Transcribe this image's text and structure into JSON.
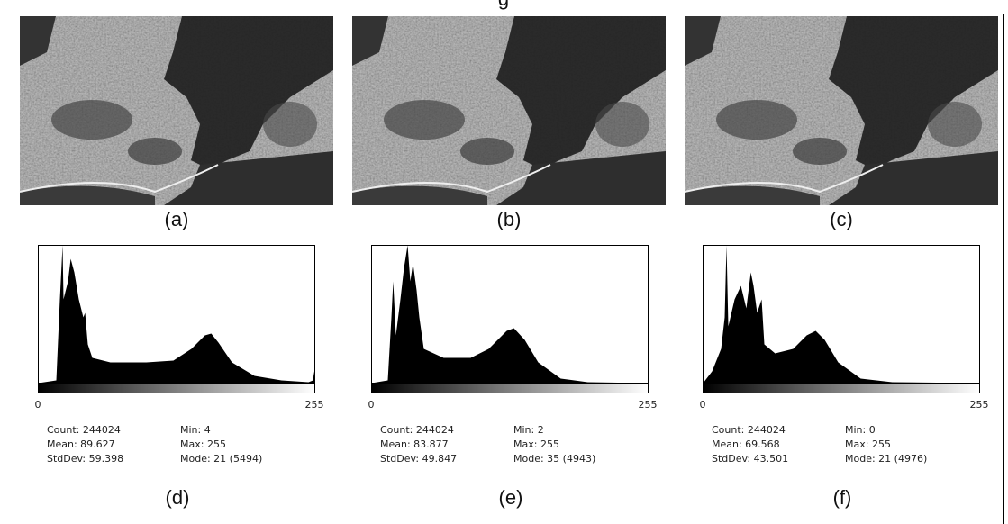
{
  "images": [
    {
      "caption": "(a)"
    },
    {
      "caption": "(b)"
    },
    {
      "caption": "(c)"
    }
  ],
  "histograms": [
    {
      "axis_min": "0",
      "axis_max": "255",
      "stats": [
        [
          "Count: 244024",
          "Min: 4"
        ],
        [
          "Mean: 89.627",
          "Max: 255"
        ],
        [
          "StdDev: 59.398",
          "Mode: 21 (5494)"
        ]
      ],
      "caption": "(d)"
    },
    {
      "axis_min": "0",
      "axis_max": "255",
      "stats": [
        [
          "Count: 244024",
          "Min: 2"
        ],
        [
          "Mean: 83.877",
          "Max: 255"
        ],
        [
          "StdDev: 49.847",
          "Mode: 35 (4943)"
        ]
      ],
      "caption": "(e)"
    },
    {
      "axis_min": "0",
      "axis_max": "255",
      "stats": [
        [
          "Count: 244024",
          "Min: 0"
        ],
        [
          "Mean: 69.568",
          "Max: 255"
        ],
        [
          "StdDev: 43.501",
          "Mode: 21 (4976)"
        ]
      ],
      "caption": "(f)"
    }
  ]
}
